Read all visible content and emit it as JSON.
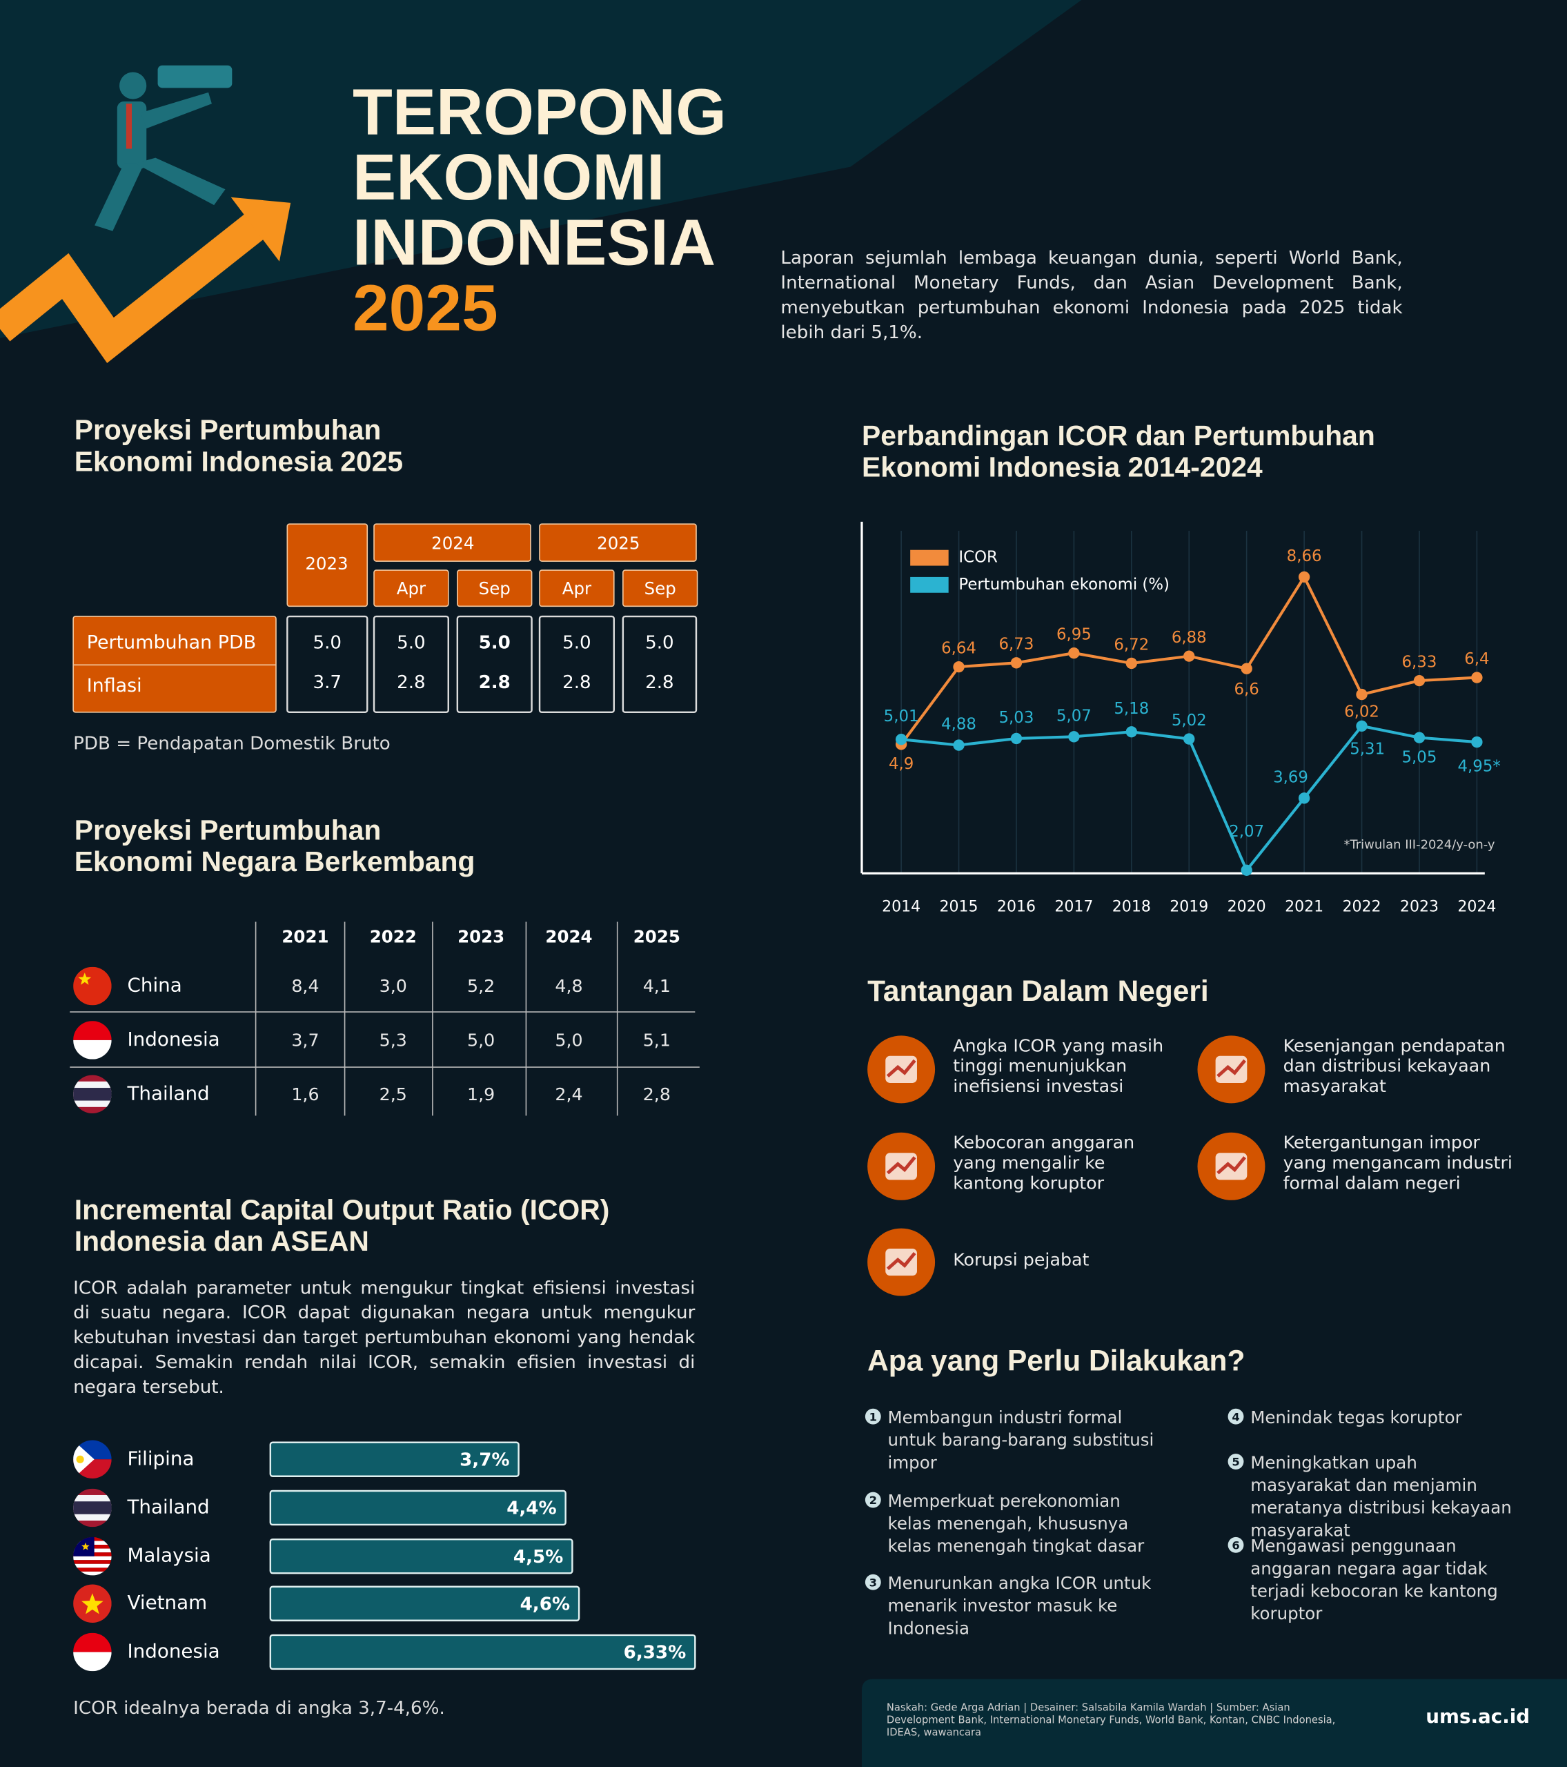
{
  "header": {
    "title_lines": [
      "TEROPONG",
      "EKONOMI",
      "INDONESIA"
    ],
    "year": "2025",
    "intro": "Laporan sejumlah lembaga keuangan dunia, seperti World Bank, International Monetary Funds, dan Asian Development Bank, menyebutkan pertumbuhan ekonomi Indonesia pada 2025 tidak lebih dari 5,1%."
  },
  "gdp_projection": {
    "title_lines": [
      "Proyeksi Pertumbuhan",
      "Ekonomi Indonesia 2025"
    ],
    "single_year": "2023",
    "year_groups": [
      {
        "year": "2024",
        "months": [
          "Apr",
          "Sep"
        ]
      },
      {
        "year": "2025",
        "months": [
          "Apr",
          "Sep"
        ]
      }
    ],
    "rows": [
      {
        "label": "Pertumbuhan PDB",
        "values": [
          "5.0",
          "5.0",
          "5.0",
          "5.0",
          "5.0"
        ]
      },
      {
        "label": "Inflasi",
        "values": [
          "3.7",
          "2.8",
          "2.8",
          "2.8",
          "2.8"
        ]
      }
    ],
    "note": "PDB = Pendapatan Domestik Bruto"
  },
  "emerging_projection": {
    "title_lines": [
      "Proyeksi Pertumbuhan",
      "Ekonomi Negara Berkembang"
    ],
    "years": [
      "2021",
      "2022",
      "2023",
      "2024",
      "2025"
    ],
    "rows": [
      {
        "country": "China",
        "values": [
          "8,4",
          "3,0",
          "5,2",
          "4,8",
          "4,1"
        ]
      },
      {
        "country": "Indonesia",
        "values": [
          "3,7",
          "5,3",
          "5,0",
          "5,0",
          "5,1"
        ]
      },
      {
        "country": "Thailand",
        "values": [
          "1,6",
          "2,5",
          "1,9",
          "2,4",
          "2,8"
        ]
      }
    ]
  },
  "chart_data": [
    {
      "type": "line",
      "title_lines": [
        "Perbandingan ICOR dan Pertumbuhan",
        "Ekonomi Indonesia 2014-2024"
      ],
      "categories": [
        "2014",
        "2015",
        "2016",
        "2017",
        "2018",
        "2019",
        "2020",
        "2021",
        "2022",
        "2023",
        "2024"
      ],
      "ylim": [
        2,
        9.9
      ],
      "legend": "upper left",
      "grid": true,
      "series": [
        {
          "name": "ICOR",
          "color": "#f28b3c",
          "values": [
            4.9,
            6.64,
            6.73,
            6.95,
            6.72,
            6.88,
            6.6,
            8.66,
            6.02,
            6.33,
            6.4
          ],
          "value_labels": [
            "4,9",
            "6,64",
            "6,73",
            "6,95",
            "6,72",
            "6,88",
            "6,6",
            "8,66",
            "6,02",
            "6,33",
            "6,4"
          ]
        },
        {
          "name": "Pertumbuhan ekonomi (%)",
          "color": "#2bb3d1",
          "values": [
            5.01,
            4.88,
            5.03,
            5.07,
            5.18,
            5.02,
            2.07,
            3.69,
            5.31,
            5.05,
            4.95
          ],
          "value_labels": [
            "5,01",
            "4,88",
            "5,03",
            "5,07",
            "5,18",
            "5,02",
            "2,07",
            "3,69",
            "5,31",
            "5,05",
            "4,95*"
          ]
        }
      ],
      "annotation": "*Triwulan III-2024/y-on-y"
    },
    {
      "type": "bar",
      "orientation": "horizontal",
      "title_lines": [
        "Incremental Capital Output Ratio (ICOR)",
        "Indonesia dan ASEAN"
      ],
      "description": "ICOR adalah parameter untuk mengukur tingkat efisiensi investasi di suatu negara. ICOR dapat digunakan negara untuk mengukur kebutuhan investasi dan target pertumbuhan ekonomi yang hendak dicapai. Semakin rendah nilai ICOR, semakin efisien investasi di negara tersebut.",
      "categories": [
        "Filipina",
        "Thailand",
        "Malaysia",
        "Vietnam",
        "Indonesia"
      ],
      "values": [
        3.7,
        4.4,
        4.5,
        4.6,
        6.33
      ],
      "value_labels": [
        "3,7%",
        "4,4%",
        "4,5%",
        "4,6%",
        "6,33%"
      ],
      "color": "#0e5c68",
      "note": "ICOR idealnya berada di angka 3,7-4,6%."
    }
  ],
  "challenges": {
    "title": "Tantangan Dalam Negeri",
    "items": [
      "Angka ICOR yang masih tinggi menunjukkan inefisiensi investasi",
      "Kesenjangan pendapatan dan distribusi kekayaan masyarakat",
      "Kebocoran anggaran yang mengalir ke kantong koruptor",
      "Ketergantungan impor yang mengancam industri formal dalam negeri",
      "Korupsi pejabat"
    ]
  },
  "actions": {
    "title": "Apa yang Perlu Dilakukan?",
    "items": [
      {
        "no": "1",
        "text": "Membangun industri formal untuk barang-barang substitusi impor"
      },
      {
        "no": "2",
        "text": "Memperkuat perekonomian kelas menengah, khususnya kelas menengah tingkat dasar"
      },
      {
        "no": "3",
        "text": "Menurunkan angka ICOR untuk menarik investor masuk ke Indonesia"
      },
      {
        "no": "4",
        "text": "Menindak tegas koruptor"
      },
      {
        "no": "5",
        "text": "Meningkatkan upah masyarakat dan menjamin meratanya distribusi kekayaan masyarakat"
      },
      {
        "no": "6",
        "text": "Mengawasi penggunaan anggaran negara agar tidak terjadi kebocoran ke kantong koruptor"
      }
    ]
  },
  "footer": {
    "credits": "Naskah: Gede Arga Adrian | Desainer: Salsabila Kamila Wardah | Sumber: Asian Development Bank, International Monetary Funds, World Bank, Kontan, CNBC Indonesia, IDEAS, wawancara",
    "site": "ums.ac.id"
  }
}
